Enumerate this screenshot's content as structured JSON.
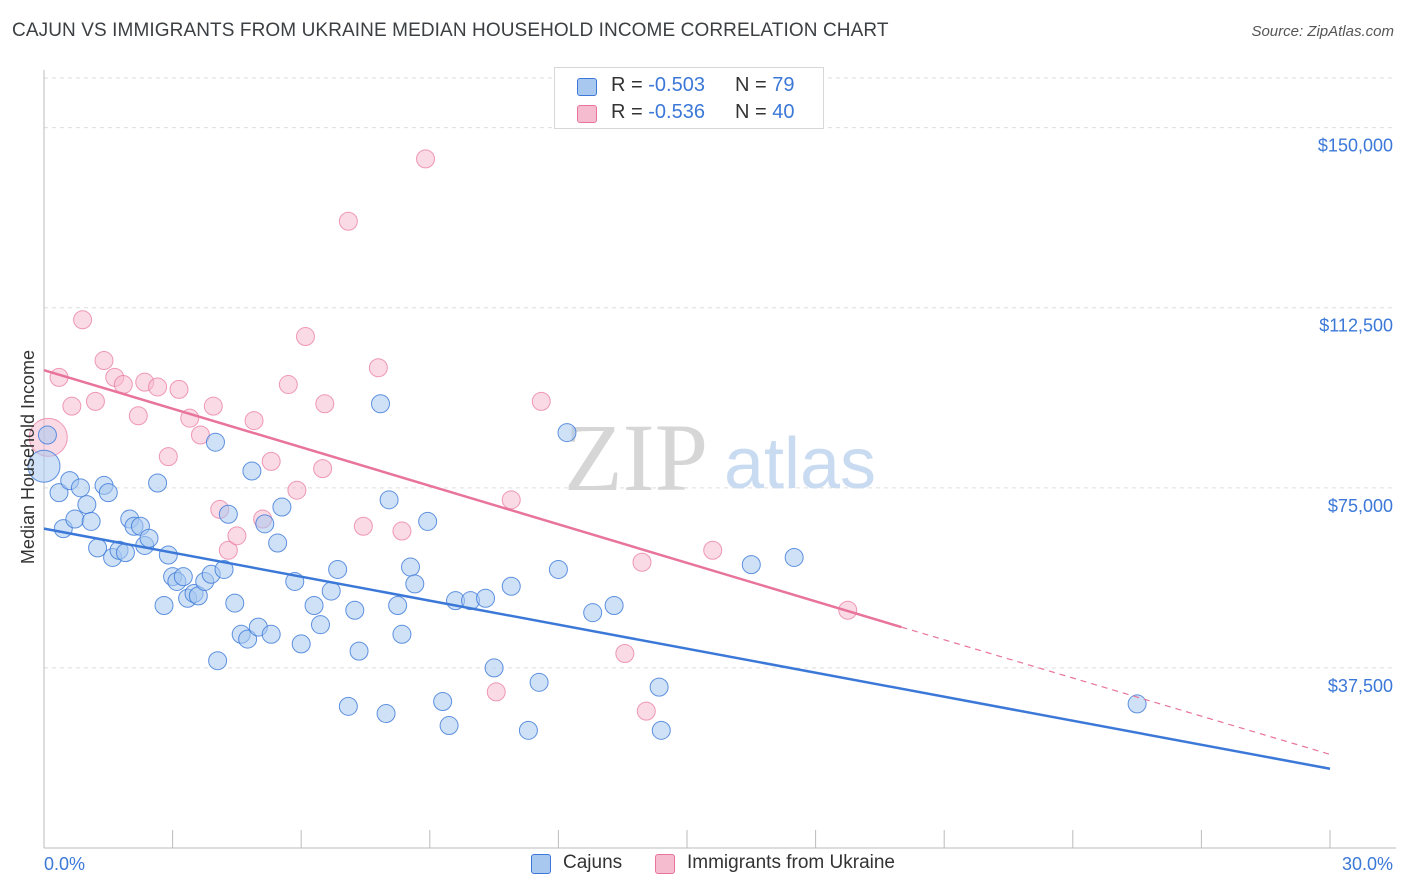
{
  "title": "CAJUN VS IMMIGRANTS FROM UKRAINE MEDIAN HOUSEHOLD INCOME CORRELATION CHART",
  "source": "Source: ZipAtlas.com",
  "watermark": {
    "zip": "ZIP",
    "atlas": "atlas"
  },
  "legend_top": {
    "rows": [
      {
        "r_label": "R =",
        "r_value": "-0.503",
        "n_label": "N =",
        "n_value": "79"
      },
      {
        "r_label": "R =",
        "r_value": "-0.536",
        "n_label": "N =",
        "n_value": "40"
      }
    ]
  },
  "chart_data": {
    "type": "scatter",
    "title": "CAJUN VS IMMIGRANTS FROM UKRAINE MEDIAN HOUSEHOLD INCOME CORRELATION CHART",
    "xlabel": "",
    "ylabel": "Median Household Income",
    "xlim": [
      0,
      30
    ],
    "ylim": [
      0,
      162000
    ],
    "x_tick_labels": [
      "0.0%",
      "30.0%"
    ],
    "y_ticks": [
      37500,
      75000,
      112500,
      150000
    ],
    "y_tick_labels": [
      "$37,500",
      "$75,000",
      "$112,500",
      "$150,000"
    ],
    "grid": "horizontal dashed",
    "legend_position": "bottom-center",
    "colors": {
      "Cajuns": "#3b78d8",
      "Immigrants from Ukraine": "#e8749b"
    },
    "series": [
      {
        "name": "Cajuns",
        "color": "#3b78d8",
        "fill": "#a8c8f0",
        "trend": {
          "x0": 0,
          "y0": 66500,
          "x1": 30,
          "y1": 16500
        },
        "points": [
          [
            0.0,
            79500
          ],
          [
            0.08,
            86000
          ],
          [
            0.35,
            74000
          ],
          [
            0.45,
            66500
          ],
          [
            0.6,
            76500
          ],
          [
            0.72,
            68500
          ],
          [
            0.85,
            75000
          ],
          [
            1.0,
            71500
          ],
          [
            1.1,
            68000
          ],
          [
            1.25,
            62500
          ],
          [
            1.4,
            75500
          ],
          [
            1.5,
            74000
          ],
          [
            1.6,
            60500
          ],
          [
            1.75,
            62000
          ],
          [
            1.9,
            61500
          ],
          [
            2.0,
            68500
          ],
          [
            2.1,
            67000
          ],
          [
            2.25,
            67000
          ],
          [
            2.35,
            63000
          ],
          [
            2.45,
            64500
          ],
          [
            2.65,
            76000
          ],
          [
            2.8,
            50500
          ],
          [
            2.9,
            61000
          ],
          [
            3.0,
            56500
          ],
          [
            3.1,
            55500
          ],
          [
            3.25,
            56500
          ],
          [
            3.35,
            52000
          ],
          [
            3.5,
            53000
          ],
          [
            3.6,
            52500
          ],
          [
            3.75,
            55500
          ],
          [
            3.9,
            57000
          ],
          [
            4.0,
            84500
          ],
          [
            4.05,
            39000
          ],
          [
            4.2,
            58000
          ],
          [
            4.3,
            69500
          ],
          [
            4.45,
            51000
          ],
          [
            4.6,
            44500
          ],
          [
            4.75,
            43500
          ],
          [
            4.85,
            78500
          ],
          [
            5.0,
            46000
          ],
          [
            5.15,
            67500
          ],
          [
            5.3,
            44500
          ],
          [
            5.45,
            63500
          ],
          [
            5.55,
            71000
          ],
          [
            5.85,
            55500
          ],
          [
            6.0,
            42500
          ],
          [
            6.3,
            50500
          ],
          [
            6.45,
            46500
          ],
          [
            6.7,
            53500
          ],
          [
            6.85,
            58000
          ],
          [
            7.1,
            29500
          ],
          [
            7.25,
            49500
          ],
          [
            7.35,
            41000
          ],
          [
            7.85,
            92500
          ],
          [
            7.98,
            28000
          ],
          [
            8.05,
            72500
          ],
          [
            8.25,
            50500
          ],
          [
            8.35,
            44500
          ],
          [
            8.55,
            58500
          ],
          [
            8.65,
            55000
          ],
          [
            8.95,
            68000
          ],
          [
            9.3,
            30500
          ],
          [
            9.45,
            25500
          ],
          [
            9.6,
            51500
          ],
          [
            9.95,
            51500
          ],
          [
            10.3,
            52000
          ],
          [
            10.5,
            37500
          ],
          [
            10.9,
            54500
          ],
          [
            11.3,
            24500
          ],
          [
            11.55,
            34500
          ],
          [
            12.0,
            58000
          ],
          [
            12.2,
            86500
          ],
          [
            12.8,
            49000
          ],
          [
            13.3,
            50500
          ],
          [
            14.35,
            33500
          ],
          [
            14.4,
            24500
          ],
          [
            16.5,
            59000
          ],
          [
            17.5,
            60500
          ],
          [
            25.5,
            30000
          ]
        ]
      },
      {
        "name": "Immigrants from Ukraine",
        "color": "#e8749b",
        "fill": "#f5bccf",
        "trend": {
          "x0": 0,
          "y0": 99500,
          "x1": 20,
          "y1": 46000
        },
        "trend_dashed": {
          "x0": 20,
          "y0": 46000,
          "x1": 30,
          "y1": 19500
        },
        "points": [
          [
            0.1,
            85500
          ],
          [
            0.35,
            98000
          ],
          [
            0.65,
            92000
          ],
          [
            0.9,
            110000
          ],
          [
            1.2,
            93000
          ],
          [
            1.4,
            101500
          ],
          [
            1.65,
            98000
          ],
          [
            1.85,
            96500
          ],
          [
            2.2,
            90000
          ],
          [
            2.35,
            97000
          ],
          [
            2.65,
            96000
          ],
          [
            2.9,
            81500
          ],
          [
            3.15,
            95500
          ],
          [
            3.4,
            89500
          ],
          [
            3.65,
            86000
          ],
          [
            3.95,
            92000
          ],
          [
            4.1,
            70500
          ],
          [
            4.3,
            62000
          ],
          [
            4.5,
            65000
          ],
          [
            4.9,
            89000
          ],
          [
            5.1,
            68500
          ],
          [
            5.3,
            80500
          ],
          [
            5.7,
            96500
          ],
          [
            5.9,
            74500
          ],
          [
            6.1,
            106500
          ],
          [
            6.5,
            79000
          ],
          [
            6.55,
            92500
          ],
          [
            7.1,
            130500
          ],
          [
            7.45,
            67000
          ],
          [
            7.8,
            100000
          ],
          [
            8.35,
            66000
          ],
          [
            8.9,
            143500
          ],
          [
            10.55,
            32500
          ],
          [
            10.9,
            72500
          ],
          [
            11.6,
            93000
          ],
          [
            13.55,
            40500
          ],
          [
            13.95,
            59500
          ],
          [
            14.05,
            28500
          ],
          [
            15.6,
            62000
          ],
          [
            18.75,
            49500
          ]
        ]
      }
    ]
  },
  "legend_bottom": {
    "items": [
      "Cajuns",
      "Immigrants from Ukraine"
    ]
  }
}
